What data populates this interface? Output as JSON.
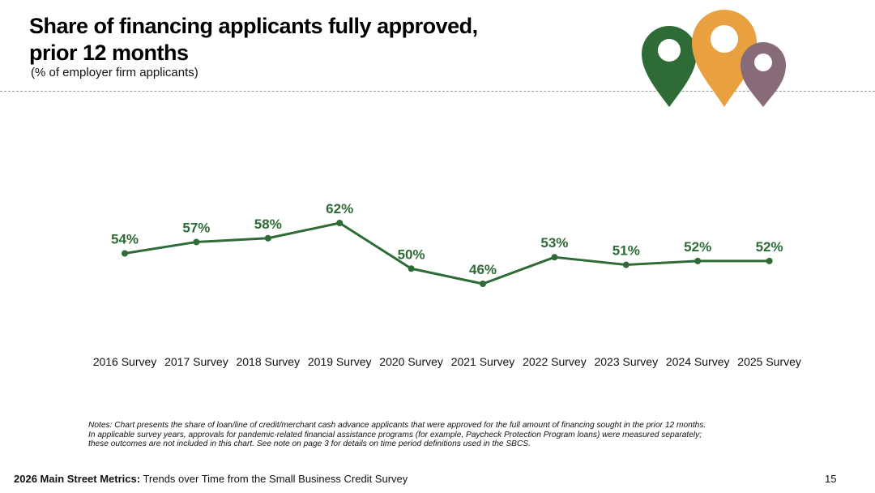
{
  "header": {
    "title_line1": "Share of financing applicants fully approved,",
    "title_line2": "prior 12 months",
    "subtitle": "(% of employer firm applicants)"
  },
  "colors": {
    "line": "#2f6b37",
    "label": "#2f6b37",
    "pin_green": "#2f6b37",
    "pin_orange": "#e8a040",
    "pin_mauve": "#876b78"
  },
  "chart_data": {
    "type": "line",
    "title": "Share of financing applicants fully approved, prior 12 months",
    "subtitle": "(% of employer firm applicants)",
    "categories": [
      "2016 Survey",
      "2017 Survey",
      "2018 Survey",
      "2019 Survey",
      "2020 Survey",
      "2021 Survey",
      "2022 Survey",
      "2023 Survey",
      "2024 Survey",
      "2025 Survey"
    ],
    "values": [
      54,
      57,
      58,
      62,
      50,
      46,
      53,
      51,
      52,
      52
    ],
    "data_labels": [
      "54%",
      "57%",
      "58%",
      "62%",
      "50%",
      "46%",
      "53%",
      "51%",
      "52%",
      "52%"
    ],
    "xlabel": "",
    "ylabel": "",
    "grid": false,
    "legend": "none"
  },
  "notes": {
    "line1": "Notes: Chart presents the share of loan/line of credit/merchant cash advance applicants that were approved for the full amount of financing sought in the prior 12 months.",
    "line2": "In applicable survey years, approvals for pandemic-related financial assistance programs (for example, Paycheck Protection Program loans) were measured separately;",
    "line3": "these outcomes are not included in this chart. See note on page 3 for details on time period definitions used in the SBCS."
  },
  "footer": {
    "bold": "2026 Main Street Metrics:",
    "text": " Trends over Time from the Small Business Credit Survey",
    "page": "15"
  }
}
